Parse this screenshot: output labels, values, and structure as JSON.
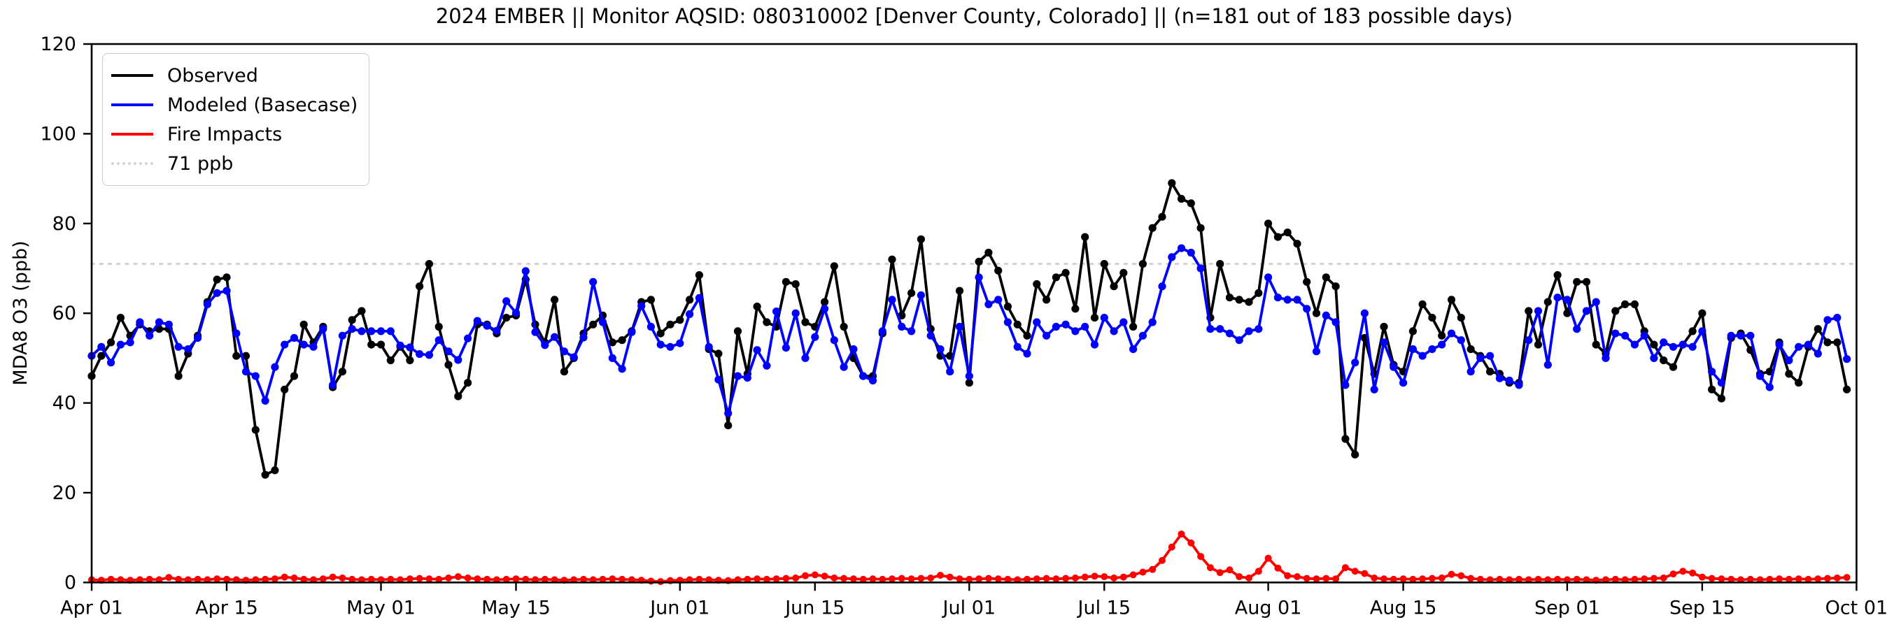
{
  "chart_data": {
    "type": "line",
    "title": "2024 EMBER || Monitor AQSID: 080310002 [Denver County, Colorado] || (n=181 out of 183 possible days)",
    "ylabel": "MDA8 O3 (ppb)",
    "ylim": [
      0,
      120
    ],
    "yticks": [
      0,
      20,
      40,
      60,
      80,
      100,
      120
    ],
    "xticks": [
      {
        "label": "Apr 01",
        "day": 0
      },
      {
        "label": "Apr 15",
        "day": 14
      },
      {
        "label": "May 01",
        "day": 30
      },
      {
        "label": "May 15",
        "day": 44
      },
      {
        "label": "Jun 01",
        "day": 61
      },
      {
        "label": "Jun 15",
        "day": 75
      },
      {
        "label": "Jul 01",
        "day": 91
      },
      {
        "label": "Jul 15",
        "day": 105
      },
      {
        "label": "Aug 01",
        "day": 122
      },
      {
        "label": "Aug 15",
        "day": 136
      },
      {
        "label": "Sep 01",
        "day": 153
      },
      {
        "label": "Sep 15",
        "day": 167
      },
      {
        "label": "Oct 01",
        "day": 183
      }
    ],
    "n_days": 183,
    "grid": false,
    "legend_position": "upper-left",
    "threshold": {
      "value": 71,
      "label": "71 ppb",
      "color": "#d3d3d3",
      "style": "dotted"
    },
    "legend": [
      {
        "label": "Observed",
        "color": "#000000",
        "style": "solid"
      },
      {
        "label": "Modeled (Basecase)",
        "color": "#0000ff",
        "style": "solid"
      },
      {
        "label": "Fire Impacts",
        "color": "#ff0000",
        "style": "solid"
      },
      {
        "label": "71 ppb",
        "color": "#d3d3d3",
        "style": "dotted"
      }
    ],
    "series": [
      {
        "name": "Observed",
        "color": "#000000",
        "values": [
          46,
          50.5,
          53.5,
          59,
          55,
          57.5,
          56,
          56.5,
          56.5,
          46,
          51,
          55,
          62.5,
          67.5,
          68,
          50.5,
          50.5,
          34,
          24,
          25,
          43,
          46,
          57.5,
          53.5,
          57,
          43.5,
          47,
          58.5,
          60.5,
          53,
          53,
          49.5,
          52.5,
          49.5,
          66,
          71,
          57,
          48.5,
          41.5,
          44.5,
          57.5,
          57.5,
          55.5,
          59,
          59.5,
          67.5,
          57.5,
          53.5,
          63,
          47,
          50,
          55.5,
          57.5,
          59.5,
          53.5,
          54,
          56,
          62.5,
          63,
          55.5,
          57.5,
          58.5,
          63,
          68.5,
          52,
          51,
          35,
          56,
          46.5,
          61.5,
          58,
          57,
          67,
          66.5,
          58,
          57,
          62.5,
          70.5,
          57,
          50,
          46,
          46,
          55.5,
          72,
          59.5,
          64.5,
          76.5,
          56.5,
          50.5,
          50.5,
          65,
          44.5,
          71.5,
          73.5,
          69.5,
          61.5,
          57.5,
          55,
          66.5,
          63,
          68,
          69,
          61,
          77,
          59,
          71,
          66,
          69,
          57,
          71,
          79,
          81.5,
          89,
          85.5,
          84.5,
          79,
          59,
          71,
          63.5,
          63,
          62.5,
          64.5,
          80,
          77,
          78,
          75.5,
          67,
          60,
          68,
          66,
          32,
          28.5,
          54.5,
          46.5,
          57,
          48.5,
          47,
          56,
          62,
          59,
          55,
          63,
          59,
          52,
          50.5,
          47,
          46.5,
          44.5,
          44.5,
          60.5,
          53,
          62.5,
          68.5,
          60,
          67,
          67,
          53,
          51,
          60.5,
          62,
          62,
          56,
          53,
          49.5,
          48,
          53,
          56,
          60,
          43,
          41,
          54.5,
          55.5,
          51.8,
          46.5,
          47,
          53.5,
          46.5,
          44.5,
          52.5,
          56.5,
          53.5,
          53.5,
          43
        ]
      },
      {
        "name": "Modeled (Basecase)",
        "color": "#0000ff",
        "values": [
          50.5,
          52.5,
          49,
          53,
          53.5,
          58,
          55,
          58,
          57.5,
          52.5,
          52,
          54.5,
          62,
          64.5,
          65,
          55.5,
          47,
          46,
          40.5,
          48,
          53,
          54.5,
          53,
          52.5,
          56.5,
          44,
          55,
          56.5,
          56,
          56,
          56,
          56,
          52.8,
          52.4,
          50.9,
          50.7,
          54,
          51.5,
          49.6,
          54.4,
          58.3,
          57.2,
          56.1,
          62.7,
          60.1,
          69.4,
          55.8,
          52.9,
          54.7,
          51.5,
          50.2,
          54.6,
          67,
          58,
          50,
          47.6,
          55.8,
          61.6,
          57,
          53,
          52.5,
          53.3,
          59.8,
          63.4,
          52.5,
          45.2,
          37.7,
          46,
          45.6,
          51.8,
          48.3,
          60.4,
          52.3,
          60,
          50,
          54.7,
          61,
          54,
          48,
          52,
          46,
          45,
          56,
          63,
          57,
          56,
          64,
          55,
          52,
          47,
          57,
          46,
          68,
          62,
          63,
          58,
          52.5,
          51,
          58,
          55,
          57,
          57.5,
          56,
          57,
          53,
          59,
          56,
          58,
          52,
          55,
          58,
          66,
          72.5,
          74.5,
          73.5,
          70,
          56.5,
          56.5,
          55.5,
          54,
          56,
          56.5,
          68,
          63.5,
          63,
          63,
          61,
          51.5,
          59.5,
          58,
          44,
          49,
          60,
          43,
          53.5,
          48,
          44.5,
          52,
          50.5,
          52,
          53,
          55.5,
          54,
          47,
          50,
          50.5,
          45.5,
          45,
          44,
          54,
          60.5,
          48.5,
          63.5,
          63,
          56.5,
          60.5,
          62.5,
          50,
          55.5,
          55,
          53,
          55,
          50,
          53.5,
          52.5,
          53,
          52.5,
          56,
          47,
          44.5,
          55,
          55,
          55,
          46,
          43.5,
          53,
          49.5,
          52.5,
          53,
          51,
          58.5,
          59,
          49.8
        ]
      },
      {
        "name": "Fire Impacts",
        "color": "#ff0000",
        "values": [
          0.6,
          0.5,
          0.7,
          0.6,
          0.5,
          0.6,
          0.7,
          0.6,
          1.1,
          0.7,
          0.6,
          0.7,
          0.6,
          0.8,
          0.7,
          0.6,
          0.5,
          0.6,
          0.7,
          0.8,
          1.2,
          1.0,
          0.7,
          0.6,
          0.8,
          1.2,
          1.0,
          0.7,
          0.6,
          0.7,
          0.6,
          0.7,
          0.6,
          0.8,
          0.9,
          0.8,
          0.7,
          1.0,
          1.3,
          1.0,
          0.8,
          0.7,
          0.6,
          0.7,
          0.8,
          0.7,
          0.6,
          0.7,
          0.6,
          0.5,
          0.6,
          0.7,
          0.6,
          0.7,
          0.8,
          0.7,
          0.6,
          0.5,
          0.3,
          0.2,
          0.4,
          0.5,
          0.6,
          0.7,
          0.6,
          0.5,
          0.4,
          0.6,
          0.7,
          0.8,
          0.7,
          0.8,
          0.9,
          1.0,
          1.5,
          1.7,
          1.4,
          1.0,
          0.9,
          0.8,
          0.7,
          0.8,
          0.7,
          0.8,
          0.9,
          0.8,
          0.9,
          1.0,
          1.6,
          1.2,
          0.8,
          0.7,
          0.8,
          0.9,
          0.8,
          0.7,
          0.6,
          0.7,
          0.8,
          0.9,
          0.8,
          0.9,
          1.0,
          1.2,
          1.4,
          1.3,
          1.0,
          1.2,
          1.7,
          2.3,
          2.9,
          4.9,
          7.9,
          10.8,
          8.8,
          5.8,
          3.3,
          2.2,
          2.8,
          1.3,
          1.0,
          2.5,
          5.4,
          3.2,
          1.5,
          1.3,
          0.9,
          0.8,
          0.9,
          0.8,
          3.3,
          2.5,
          2.0,
          1.0,
          0.8,
          0.7,
          0.8,
          0.7,
          0.8,
          0.9,
          1.0,
          1.8,
          1.5,
          0.9,
          0.7,
          0.6,
          0.7,
          0.6,
          0.7,
          0.6,
          0.7,
          0.6,
          0.7,
          0.6,
          0.7,
          0.6,
          0.5,
          0.6,
          0.7,
          0.6,
          0.7,
          0.8,
          0.9,
          1.0,
          1.9,
          2.5,
          2.1,
          1.2,
          0.9,
          0.8,
          0.7,
          0.6,
          0.7,
          0.6,
          0.7,
          0.8,
          0.7,
          0.8,
          0.7,
          0.8,
          0.9,
          1.0,
          1.1
        ]
      }
    ]
  }
}
